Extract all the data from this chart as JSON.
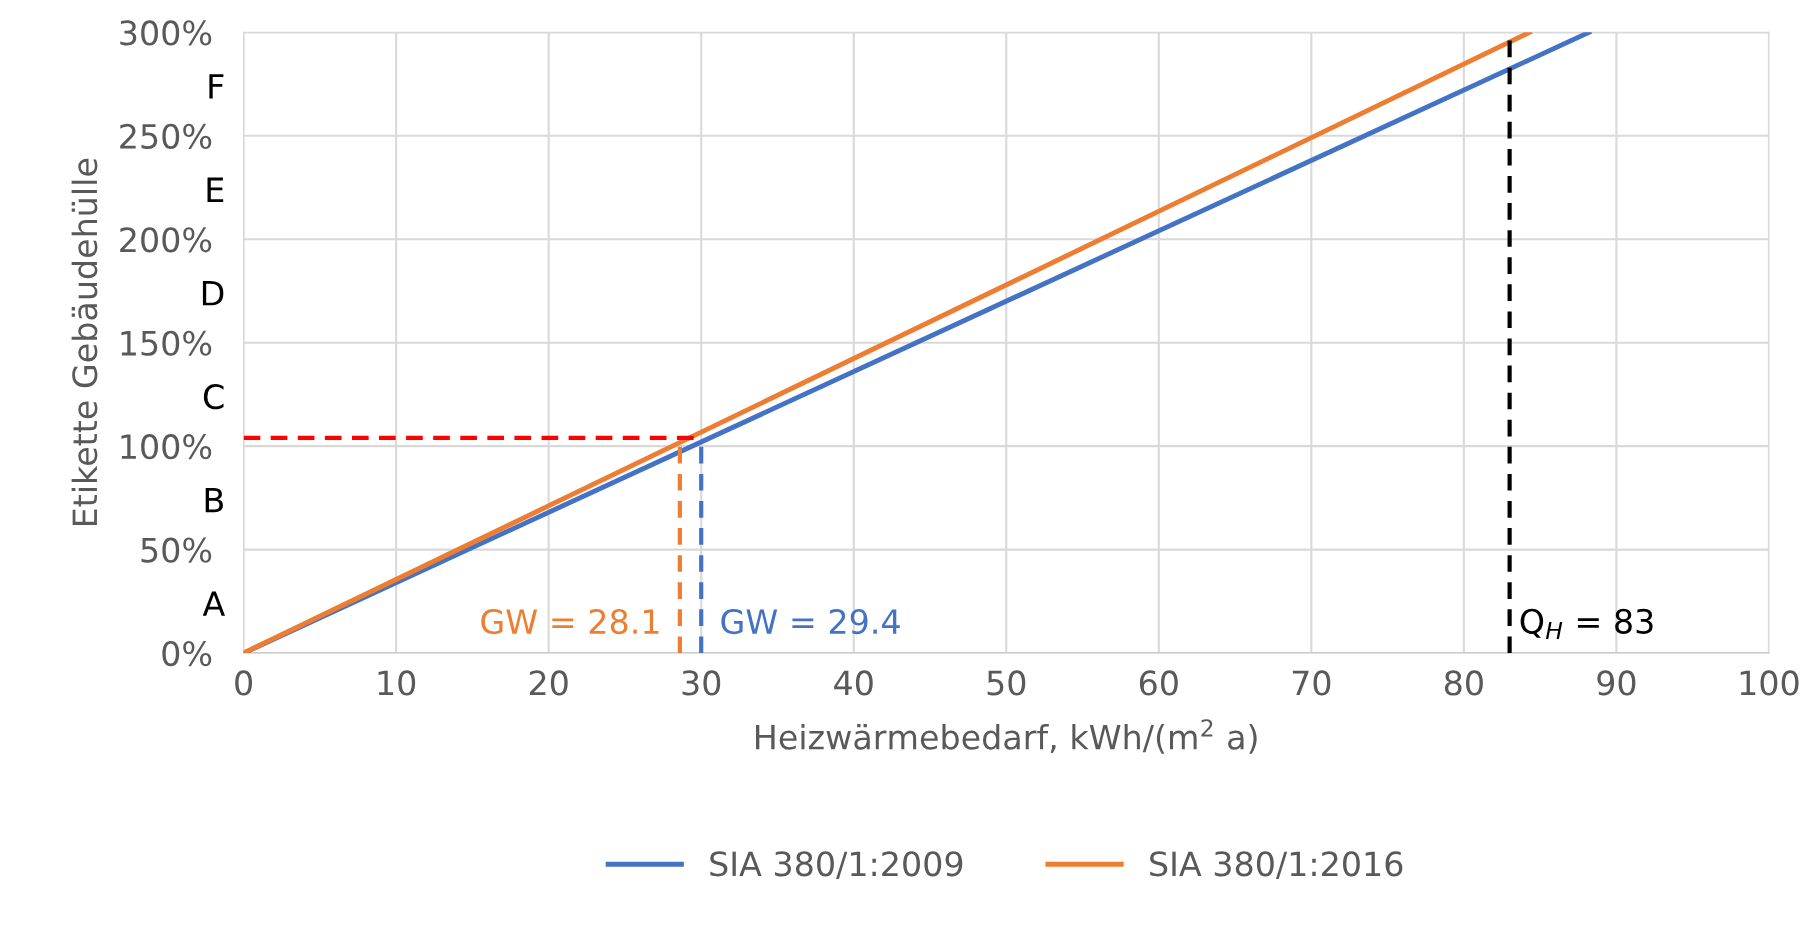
{
  "chart_data": {
    "type": "line",
    "xlabel": "Heizwärmebedarf, kWh/(m$^{2}$ a)",
    "ylabel": "Etikette Gebäudehülle",
    "xlim": [
      0,
      100
    ],
    "xticks": [
      0,
      10,
      20,
      30,
      40,
      50,
      60,
      70,
      80,
      90,
      100
    ],
    "ylim": [
      0,
      300
    ],
    "yticks": [
      {
        "value": 0,
        "label": "0%"
      },
      {
        "value": 50,
        "label": "50%"
      },
      {
        "value": 100,
        "label": "100%"
      },
      {
        "value": 150,
        "label": "150%"
      },
      {
        "value": 200,
        "label": "200%"
      },
      {
        "value": 250,
        "label": "250%"
      },
      {
        "value": 300,
        "label": "300%"
      }
    ],
    "annotations": [
      "A",
      "B",
      "C",
      "D",
      "E",
      "F"
    ],
    "grid": true,
    "legend": "bottom",
    "marker": "none",
    "series": [
      {
        "name": "SIA 380/1:2009",
        "color": "#4472c4",
        "x": [
          0,
          88.2
        ],
        "values": [
          0,
          300
        ],
        "line_style": "solid"
      },
      {
        "name": "SIA 380/1:2016",
        "color": "#ed7d31",
        "x": [
          0,
          84.3
        ],
        "values": [
          0,
          300
        ],
        "line_style": "solid"
      },
      {
        "color": "#ff0000",
        "x": [
          0,
          30
        ],
        "values": [
          104,
          104
        ],
        "line_style": "dashed"
      },
      {
        "name": "GW = 28.1",
        "color": "#ed7d31",
        "x": [
          28.6,
          28.6
        ],
        "values": [
          0,
          104
        ],
        "line_style": "dashed"
      },
      {
        "name": "GW = 29.4",
        "color": "#4472c4",
        "x": [
          30,
          30
        ],
        "values": [
          0,
          104
        ],
        "line_style": "dashed"
      }
    ],
    "ref_lines": [
      {
        "axis": "x",
        "value": 83,
        "label": "Q$_{H}$ = 83",
        "color": "#000000",
        "line_style": "dashed"
      }
    ]
  }
}
